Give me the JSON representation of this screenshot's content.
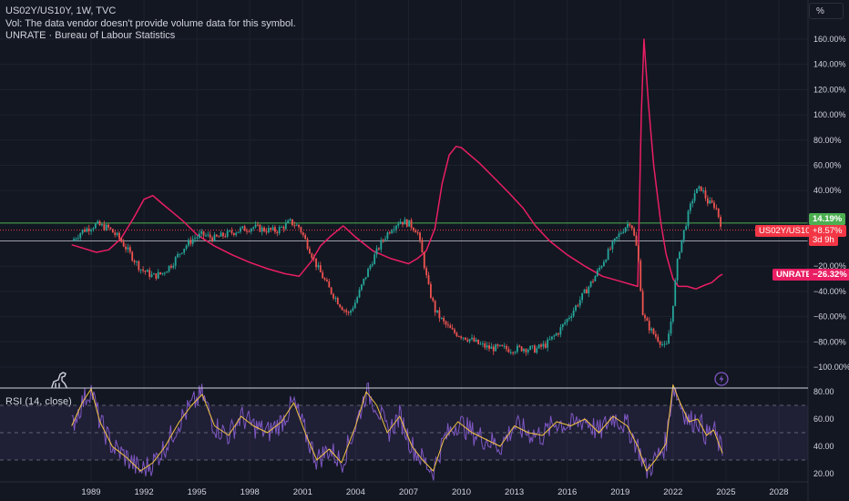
{
  "legend": {
    "symbol_line": "US02Y/US10Y, 1W, TVC",
    "volume_note": "Vol: The data vendor doesn't provide volume data for this symbol.",
    "overlay_line": "UNRATE · Bureau of Labour Statistics",
    "rsi_label": "RSI (14, close)"
  },
  "scale_unit": "%",
  "price_axis": {
    "ticks": [
      "160.00%",
      "140.00%",
      "120.00%",
      "100.00%",
      "80.00%",
      "60.00%",
      "40.00%",
      "−20.00%",
      "−40.00%",
      "−60.00%",
      "−80.00%",
      "−100.00%"
    ],
    "tick_values": [
      160,
      140,
      120,
      100,
      80,
      60,
      40,
      -20,
      -40,
      -60,
      -80,
      -100
    ]
  },
  "rsi_axis": {
    "ticks": [
      "80.00",
      "60.00",
      "40.00",
      "20.00"
    ],
    "tick_values": [
      80,
      60,
      40,
      20
    ]
  },
  "time_axis": {
    "ticks": [
      "1989",
      "1992",
      "1995",
      "1998",
      "2001",
      "2004",
      "2007",
      "2010",
      "2013",
      "2016",
      "2019",
      "2022",
      "2025",
      "2028"
    ],
    "tick_values": [
      1989,
      1992,
      1995,
      1998,
      2001,
      2004,
      2007,
      2010,
      2013,
      2016,
      2019,
      2022,
      2025,
      2028
    ]
  },
  "badges": {
    "green_value": "14.19%",
    "symbol_name": "US02Y/US10Y",
    "symbol_change": "+8.57%",
    "countdown": "3d 9h",
    "unrate_name": "UNRATE",
    "unrate_change": "−26.32%"
  },
  "colors": {
    "background": "#131722",
    "candle_up": "#26a69a",
    "candle_down": "#ef5350",
    "unrate_line": "#e91e63",
    "rsi_line": "#7e57c2",
    "rsi_ma": "#f5c542",
    "green_hline": "#4caf50",
    "symbol_badge": "#f23645",
    "unrate_badge": "#e91e63"
  },
  "icons": {
    "logo": "dinosaur-logo-icon",
    "lightning": "lightning-icon"
  },
  "chart_data": {
    "type": "line",
    "x_unit": "year",
    "series": [
      {
        "name": "US02Y/US10Y",
        "x": [
          1987.9,
          1988.5,
          1989.3,
          1990.0,
          1990.6,
          1991.2,
          1991.8,
          1992.5,
          1993.0,
          1993.6,
          1994.2,
          1994.8,
          1995.3,
          1996.0,
          1996.8,
          1997.5,
          1998.2,
          1998.8,
          1999.5,
          2000.3,
          2000.8,
          2001.3,
          2001.8,
          2002.5,
          2003.2,
          2003.6,
          2004.0,
          2004.5,
          2005.0,
          2005.5,
          2006.0,
          2006.5,
          2007.0,
          2007.5,
          2007.8,
          2008.1,
          2008.5,
          2009.0,
          2009.5,
          2010.0,
          2010.5,
          2011.0,
          2011.6,
          2012.2,
          2012.8,
          2013.5,
          2014.2,
          2014.8,
          2015.5,
          2016.2,
          2016.8,
          2017.5,
          2018.2,
          2018.8,
          2019.2,
          2019.6,
          2020.0,
          2020.3,
          2020.8,
          2021.3,
          2021.6,
          2021.9,
          2022.3,
          2022.8,
          2023.2,
          2023.6,
          2024.0,
          2024.4,
          2024.7
        ],
        "y": [
          0,
          8,
          13,
          10,
          2,
          -10,
          -22,
          -28,
          -26,
          -18,
          -6,
          2,
          5,
          2,
          6,
          9,
          11,
          9,
          8,
          15,
          11,
          -4,
          -20,
          -38,
          -52,
          -58,
          -48,
          -30,
          -14,
          0,
          10,
          16,
          14,
          8,
          -12,
          -35,
          -55,
          -65,
          -72,
          -75,
          -78,
          -82,
          -85,
          -85,
          -86,
          -85,
          -86,
          -82,
          -72,
          -58,
          -45,
          -30,
          -12,
          2,
          10,
          16,
          -10,
          -60,
          -72,
          -80,
          -86,
          -62,
          -10,
          18,
          38,
          42,
          30,
          28,
          14.19
        ]
      },
      {
        "name": "UNRATE",
        "x": [
          1987.9,
          1988.6,
          1989.3,
          1990.0,
          1990.7,
          1991.4,
          1992.0,
          1992.5,
          1993.0,
          1993.6,
          1994.2,
          1995.0,
          1996.0,
          1997.0,
          1998.0,
          1999.0,
          2000.0,
          2000.8,
          2001.5,
          2002.0,
          2002.6,
          2003.3,
          2004.0,
          2005.0,
          2006.0,
          2007.0,
          2007.5,
          2008.0,
          2008.5,
          2008.9,
          2009.3,
          2009.7,
          2010.0,
          2010.5,
          2011.0,
          2011.5,
          2012.0,
          2012.7,
          2013.5,
          2014.2,
          2015.0,
          2016.0,
          2017.0,
          2018.0,
          2019.0,
          2019.5,
          2020.0,
          2020.2,
          2020.35,
          2020.6,
          2020.9,
          2021.3,
          2021.6,
          2022.0,
          2022.3,
          2022.8,
          2023.3,
          2023.8,
          2024.2,
          2024.6,
          2024.8
        ],
        "y": [
          -3,
          -6,
          -9,
          -7,
          2,
          18,
          33,
          36,
          30,
          23,
          16,
          5,
          -4,
          -11,
          -17,
          -22,
          -26,
          -28,
          -16,
          -4,
          4,
          12,
          3,
          -8,
          -14,
          -18,
          -14,
          -8,
          10,
          45,
          68,
          75,
          74,
          68,
          62,
          55,
          48,
          38,
          26,
          12,
          0,
          -11,
          -20,
          -28,
          -32,
          -34,
          -36,
          100,
          160,
          110,
          60,
          15,
          -10,
          -30,
          -36,
          -36,
          -38,
          -35,
          -33,
          -28,
          -26.32
        ]
      },
      {
        "name": "RSI (14, close)",
        "x": [
          1987.9,
          1988.5,
          1989.0,
          1989.5,
          1990.2,
          1991.0,
          1991.8,
          1992.5,
          1993.2,
          1994.0,
          1994.7,
          1995.3,
          1996.0,
          1996.8,
          1997.5,
          1998.2,
          1999.0,
          1999.8,
          2000.5,
          2001.2,
          2001.8,
          2002.5,
          2003.2,
          2004.0,
          2004.6,
          2005.2,
          2005.8,
          2006.5,
          2007.2,
          2007.8,
          2008.4,
          2009.0,
          2009.8,
          2010.6,
          2011.4,
          2012.2,
          2013.0,
          2013.8,
          2014.6,
          2015.4,
          2016.2,
          2017.0,
          2017.8,
          2018.6,
          2019.4,
          2020.0,
          2020.5,
          2021.0,
          2021.6,
          2022.0,
          2022.4,
          2022.9,
          2023.4,
          2023.9,
          2024.3,
          2024.8
        ],
        "y": [
          55,
          72,
          82,
          58,
          40,
          32,
          22,
          28,
          40,
          58,
          70,
          78,
          55,
          48,
          62,
          55,
          50,
          58,
          72,
          48,
          30,
          38,
          28,
          55,
          80,
          70,
          50,
          62,
          40,
          30,
          22,
          45,
          58,
          50,
          45,
          40,
          55,
          50,
          48,
          58,
          55,
          60,
          50,
          62,
          55,
          40,
          22,
          30,
          42,
          85,
          72,
          58,
          60,
          48,
          52,
          35
        ]
      }
    ],
    "price_ylim": [
      -100,
      160
    ],
    "rsi_ylim": [
      20,
      80
    ],
    "rsi_levels": [
      70,
      50,
      30
    ],
    "xlim": [
      1987.5,
      2029.0
    ],
    "hlines": [
      {
        "name": "last-value-line",
        "y": 14.19
      },
      {
        "name": "symbol-price-line",
        "y": 8.57
      }
    ],
    "grid": true
  }
}
